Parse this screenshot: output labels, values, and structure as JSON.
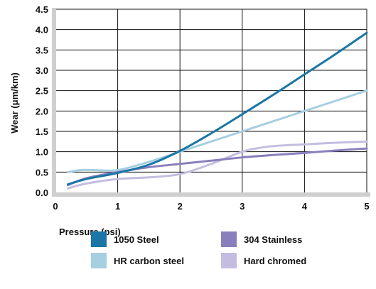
{
  "chart_data": {
    "type": "line",
    "xlabel": "Pressure (psi)",
    "ylabel": "Wear (μm/km)",
    "xlim": [
      0,
      5
    ],
    "ylim": [
      0,
      4.5
    ],
    "xticks": [
      "0",
      "1",
      "2",
      "3",
      "4",
      "5"
    ],
    "yticks": [
      "0.0",
      "0.5",
      "1.0",
      "1.5",
      "2.0",
      "2.5",
      "3.0",
      "3.5",
      "4.0",
      "4.5"
    ],
    "grid": true,
    "legend_position": "bottom",
    "series": [
      {
        "name": "1050 Steel",
        "color": "#1a76a6",
        "x": [
          0.2,
          0.5,
          1.0,
          1.5,
          2.0,
          2.5,
          3.0,
          3.5,
          4.0,
          4.5,
          5.0
        ],
        "y": [
          0.2,
          0.33,
          0.48,
          0.68,
          1.02,
          1.45,
          1.92,
          2.4,
          2.9,
          3.4,
          3.92
        ]
      },
      {
        "name": "HR carbon steel",
        "color": "#a6cfe0",
        "x": [
          0.2,
          0.4,
          0.6,
          1.0,
          1.5,
          2.0,
          2.5,
          3.0,
          3.5,
          4.0,
          4.5,
          5.0
        ],
        "y": [
          0.5,
          0.55,
          0.55,
          0.55,
          0.75,
          1.0,
          1.25,
          1.5,
          1.75,
          2.0,
          2.25,
          2.5
        ]
      },
      {
        "name": "304 Stainless",
        "color": "#8a7fbd",
        "x": [
          0.2,
          0.5,
          1.0,
          1.5,
          2.0,
          2.5,
          3.0,
          3.5,
          4.0,
          4.5,
          5.0
        ],
        "y": [
          0.18,
          0.35,
          0.5,
          0.62,
          0.7,
          0.78,
          0.86,
          0.92,
          0.97,
          1.03,
          1.08
        ]
      },
      {
        "name": "Hard chromed",
        "color": "#c4bde0",
        "x": [
          0.2,
          0.5,
          1.0,
          1.5,
          2.0,
          2.5,
          3.0,
          3.3,
          3.6,
          4.0,
          4.5,
          5.0
        ],
        "y": [
          0.1,
          0.22,
          0.33,
          0.37,
          0.45,
          0.7,
          1.0,
          1.1,
          1.15,
          1.18,
          1.22,
          1.25
        ]
      }
    ]
  }
}
